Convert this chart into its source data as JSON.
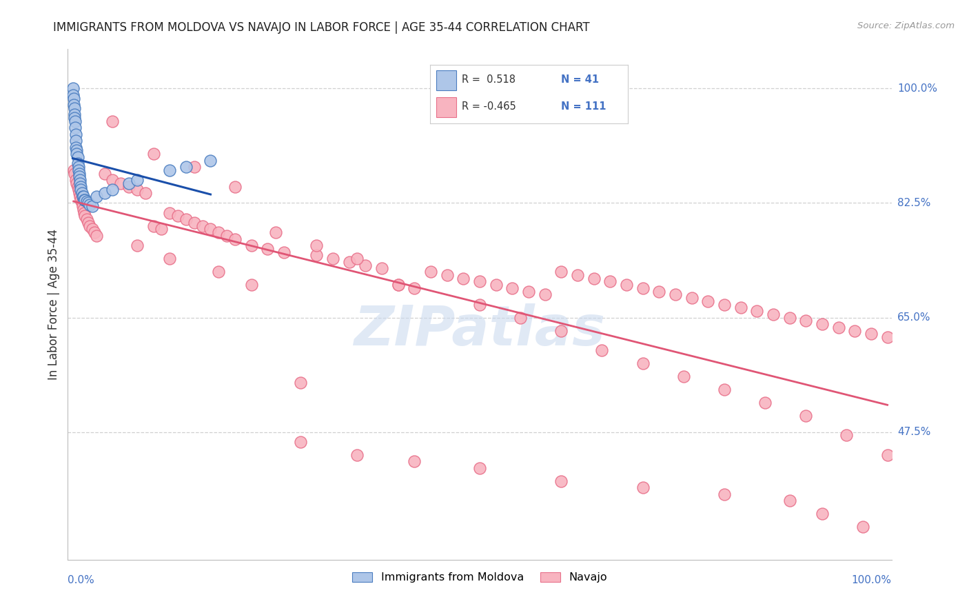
{
  "title": "IMMIGRANTS FROM MOLDOVA VS NAVAJO IN LABOR FORCE | AGE 35-44 CORRELATION CHART",
  "source": "Source: ZipAtlas.com",
  "ylabel": "In Labor Force | Age 35-44",
  "y_tick_labels": [
    "47.5%",
    "65.0%",
    "82.5%",
    "100.0%"
  ],
  "y_tick_values": [
    0.475,
    0.65,
    0.825,
    1.0
  ],
  "xlim": [
    -0.005,
    1.005
  ],
  "ylim": [
    0.28,
    1.06
  ],
  "blue_fill": "#aec6e8",
  "blue_edge": "#4a7dc0",
  "pink_fill": "#f8b4c0",
  "pink_edge": "#e8708a",
  "trend_blue": "#1a4faa",
  "trend_pink": "#e05575",
  "watermark_color": "#c8d8ee",
  "grid_color": "#d0d0d0",
  "right_label_color": "#4472c4",
  "bottom_label_color": "#4472c4",
  "blue_x": [
    0.001,
    0.001,
    0.002,
    0.002,
    0.003,
    0.003,
    0.003,
    0.004,
    0.004,
    0.005,
    0.005,
    0.005,
    0.006,
    0.006,
    0.007,
    0.007,
    0.008,
    0.008,
    0.009,
    0.009,
    0.01,
    0.01,
    0.011,
    0.011,
    0.012,
    0.013,
    0.014,
    0.015,
    0.016,
    0.018,
    0.02,
    0.022,
    0.025,
    0.03,
    0.04,
    0.05,
    0.07,
    0.08,
    0.12,
    0.14,
    0.17
  ],
  "blue_y": [
    1.0,
    0.99,
    0.985,
    0.975,
    0.97,
    0.96,
    0.955,
    0.95,
    0.94,
    0.93,
    0.92,
    0.91,
    0.905,
    0.9,
    0.895,
    0.885,
    0.88,
    0.875,
    0.87,
    0.865,
    0.86,
    0.855,
    0.85,
    0.845,
    0.84,
    0.835,
    0.835,
    0.83,
    0.83,
    0.828,
    0.825,
    0.822,
    0.82,
    0.835,
    0.84,
    0.845,
    0.855,
    0.86,
    0.875,
    0.88,
    0.89
  ],
  "pink_x": [
    0.002,
    0.003,
    0.005,
    0.006,
    0.007,
    0.008,
    0.009,
    0.01,
    0.011,
    0.012,
    0.013,
    0.014,
    0.015,
    0.016,
    0.018,
    0.02,
    0.022,
    0.025,
    0.028,
    0.03,
    0.04,
    0.05,
    0.06,
    0.07,
    0.08,
    0.09,
    0.1,
    0.11,
    0.12,
    0.13,
    0.14,
    0.15,
    0.16,
    0.17,
    0.18,
    0.19,
    0.2,
    0.22,
    0.24,
    0.26,
    0.28,
    0.3,
    0.32,
    0.34,
    0.36,
    0.38,
    0.4,
    0.42,
    0.44,
    0.46,
    0.48,
    0.5,
    0.52,
    0.54,
    0.56,
    0.58,
    0.6,
    0.62,
    0.64,
    0.66,
    0.68,
    0.7,
    0.72,
    0.74,
    0.76,
    0.78,
    0.8,
    0.82,
    0.84,
    0.86,
    0.88,
    0.9,
    0.92,
    0.94,
    0.96,
    0.98,
    1.0,
    0.05,
    0.1,
    0.15,
    0.2,
    0.25,
    0.3,
    0.35,
    0.4,
    0.5,
    0.55,
    0.6,
    0.65,
    0.7,
    0.75,
    0.8,
    0.85,
    0.9,
    0.95,
    1.0,
    0.08,
    0.12,
    0.18,
    0.22,
    0.28,
    0.35,
    0.42,
    0.5,
    0.6,
    0.7,
    0.8,
    0.88,
    0.92,
    0.97
  ],
  "pink_y": [
    0.875,
    0.87,
    0.86,
    0.855,
    0.85,
    0.845,
    0.84,
    0.835,
    0.83,
    0.825,
    0.82,
    0.815,
    0.81,
    0.805,
    0.8,
    0.795,
    0.79,
    0.785,
    0.78,
    0.775,
    0.87,
    0.86,
    0.855,
    0.85,
    0.845,
    0.84,
    0.79,
    0.785,
    0.81,
    0.805,
    0.8,
    0.795,
    0.79,
    0.785,
    0.78,
    0.775,
    0.77,
    0.76,
    0.755,
    0.75,
    0.55,
    0.745,
    0.74,
    0.735,
    0.73,
    0.725,
    0.7,
    0.695,
    0.72,
    0.715,
    0.71,
    0.705,
    0.7,
    0.695,
    0.69,
    0.685,
    0.72,
    0.715,
    0.71,
    0.705,
    0.7,
    0.695,
    0.69,
    0.685,
    0.68,
    0.675,
    0.67,
    0.665,
    0.66,
    0.655,
    0.65,
    0.645,
    0.64,
    0.635,
    0.63,
    0.625,
    0.62,
    0.95,
    0.9,
    0.88,
    0.85,
    0.78,
    0.76,
    0.74,
    0.7,
    0.67,
    0.65,
    0.63,
    0.6,
    0.58,
    0.56,
    0.54,
    0.52,
    0.5,
    0.47,
    0.44,
    0.76,
    0.74,
    0.72,
    0.7,
    0.46,
    0.44,
    0.43,
    0.42,
    0.4,
    0.39,
    0.38,
    0.37,
    0.35,
    0.33
  ]
}
